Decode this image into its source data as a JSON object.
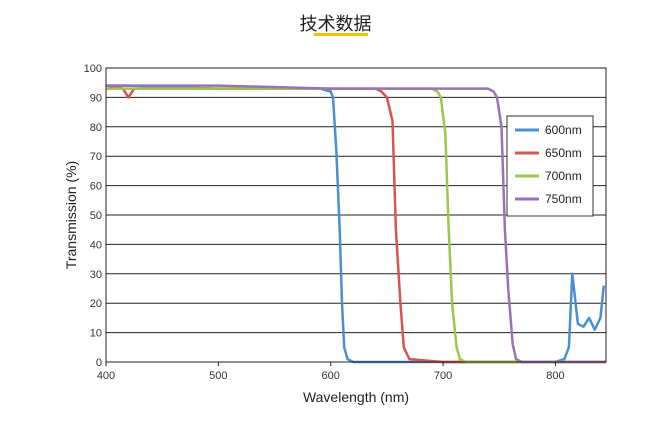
{
  "page": {
    "title": "技术数据"
  },
  "colors": {
    "accent_underline": "#f2c200"
  },
  "chart_data": {
    "type": "line",
    "xlabel": "Wavelength (nm)",
    "ylabel": "Transmission (%)",
    "xlim": [
      400,
      845
    ],
    "ylim": [
      0,
      100
    ],
    "x_ticks": [
      400,
      500,
      600,
      700,
      800
    ],
    "y_ticks": [
      0,
      10,
      20,
      30,
      40,
      50,
      60,
      70,
      80,
      90,
      100
    ],
    "grid": "horizontal",
    "legend_position": "right",
    "series": [
      {
        "name": "600nm",
        "color": "#4a90d0",
        "x": [
          400,
          420,
          500,
          590,
          600,
          602,
          605,
          608,
          610,
          612,
          615,
          620,
          700,
          800,
          808,
          812,
          815,
          820,
          825,
          830,
          835,
          840,
          843
        ],
        "y": [
          94,
          94,
          93,
          93,
          92,
          90,
          72,
          45,
          20,
          5,
          1,
          0,
          0,
          0,
          1,
          5,
          30,
          13,
          12,
          15,
          11,
          15,
          26
        ]
      },
      {
        "name": "650nm",
        "color": "#d9534f",
        "x": [
          400,
          415,
          420,
          425,
          500,
          600,
          640,
          645,
          650,
          655,
          658,
          662,
          665,
          670,
          700,
          845
        ],
        "y": [
          94,
          93,
          90,
          93,
          93,
          93,
          93,
          92,
          90,
          82,
          45,
          20,
          5,
          1,
          0,
          0
        ]
      },
      {
        "name": "700nm",
        "color": "#9bc84a",
        "x": [
          400,
          500,
          600,
          690,
          695,
          698,
          702,
          705,
          708,
          712,
          715,
          720,
          845
        ],
        "y": [
          93,
          93,
          93,
          93,
          92,
          90,
          78,
          45,
          20,
          5,
          1,
          0,
          0
        ]
      },
      {
        "name": "750nm",
        "color": "#9b72b8",
        "x": [
          400,
          500,
          600,
          700,
          740,
          745,
          748,
          752,
          755,
          758,
          762,
          765,
          770,
          845
        ],
        "y": [
          94,
          94,
          93,
          93,
          93,
          92,
          90,
          80,
          45,
          25,
          6,
          1,
          0,
          0
        ]
      }
    ]
  }
}
